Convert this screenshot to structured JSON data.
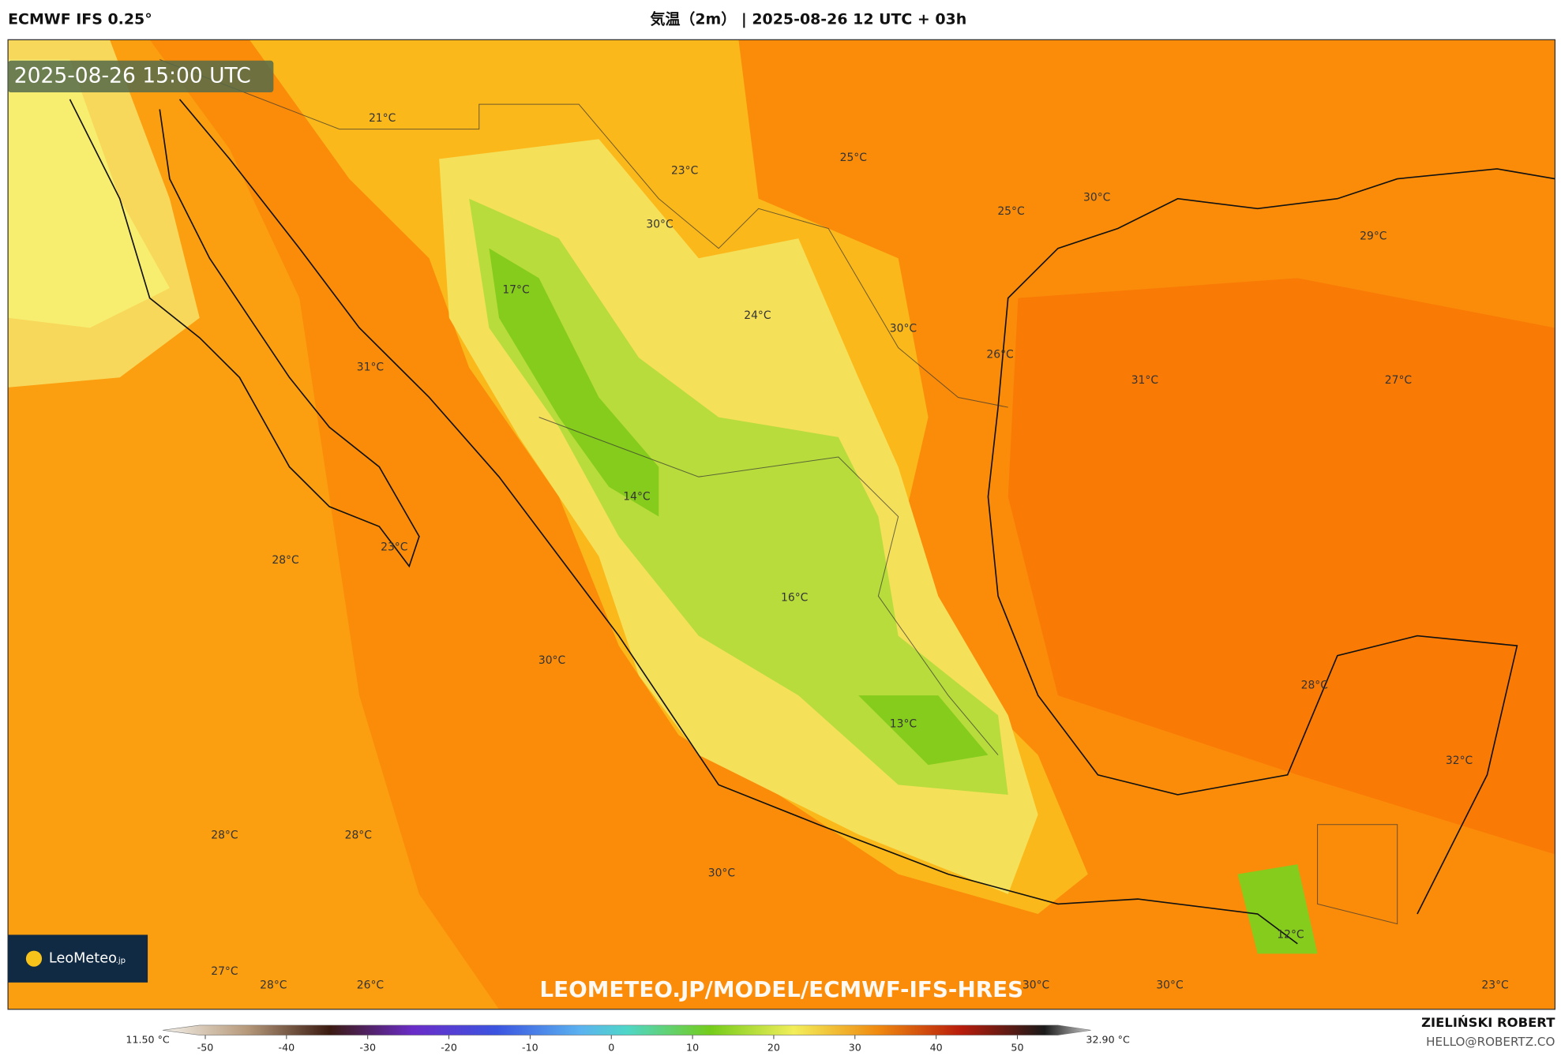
{
  "header": {
    "model": "ECMWF IFS 0.25°",
    "title": "気温（2m） | 2025-08-26 12 UTC + 03h"
  },
  "map": {
    "timestamp": "2025-08-26 15:00 UTC",
    "labels": [
      "21°C",
      "23°C",
      "25°C",
      "30°C",
      "25°C",
      "29°C",
      "30°C",
      "17°C",
      "24°C",
      "30°C",
      "26°C",
      "31°C",
      "31°C",
      "27°C",
      "14°C",
      "23°C",
      "28°C",
      "16°C",
      "30°C",
      "28°C",
      "13°C",
      "32°C",
      "28°C",
      "28°C",
      "30°C",
      "12°C",
      "27°C",
      "28°C",
      "26°C",
      "30°C",
      "30°C",
      "23°C"
    ],
    "watermark": "LEOMETEO.JP/MODEL/ECMWF-IFS-HRES",
    "logo": {
      "name": "LeoMeteo",
      "suffix": ".jp"
    }
  },
  "colorbar": {
    "min_label": "11.50 °C",
    "max_label": "32.90 °C",
    "lim": [
      -55,
      55
    ],
    "ticks": [
      -50,
      -40,
      -30,
      -20,
      -10,
      0,
      10,
      20,
      30,
      40,
      50
    ]
  },
  "footer": {
    "author": "ZIELIŃSKI ROBERT",
    "email": "HELLO@ROBERTZ.CO"
  }
}
